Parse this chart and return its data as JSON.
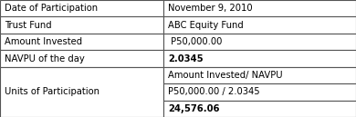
{
  "rows": [
    {
      "left": "Date of Participation",
      "right": "November 9, 2010",
      "right_bold": false,
      "left_bold": false
    },
    {
      "left": "Trust Fund",
      "right": "ABC Equity Fund",
      "right_bold": false,
      "left_bold": false
    },
    {
      "left": "Amount Invested",
      "right": " P50,000.00",
      "right_bold": false,
      "left_bold": false
    },
    {
      "left": "NAVPU of the day",
      "right": "2.0345",
      "right_bold": true,
      "left_bold": false
    }
  ],
  "last_row": {
    "left": "Units of Participation",
    "right_lines": [
      "Amount Invested/ NAVPU",
      "P50,000.00 / 2.0345",
      "24,576.06"
    ],
    "right_bold": [
      false,
      false,
      true
    ]
  },
  "col_split": 0.46,
  "border_color": "#555555",
  "bg_color": "#ffffff",
  "text_color": "#000000",
  "font_size": 7.2,
  "fig_width": 3.9,
  "fig_height": 1.29,
  "dpi": 100
}
